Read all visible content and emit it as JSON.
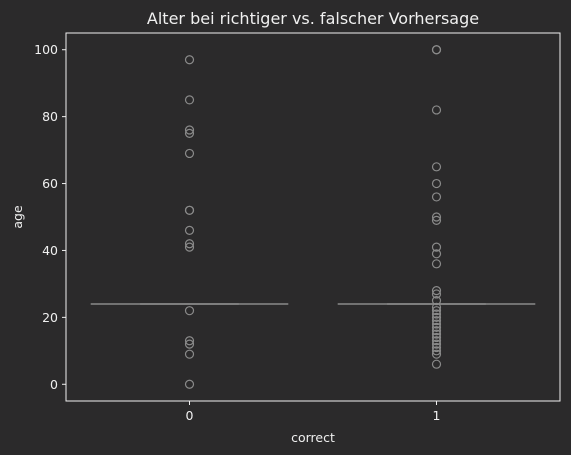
{
  "chart_data": {
    "type": "box",
    "title": "Alter bei richtiger vs. falscher Vorhersage",
    "xlabel": "correct",
    "ylabel": "age",
    "categories": [
      "0",
      "1"
    ],
    "ylim": [
      -5,
      105
    ],
    "yticks": [
      0,
      20,
      40,
      60,
      80,
      100
    ],
    "grid": false,
    "colors": {
      "background": "#2b2a2b",
      "text": "#f0f0f0",
      "box": "#8a8a8a"
    },
    "series": [
      {
        "category": "0",
        "median": 24,
        "q1": 24,
        "q3": 24,
        "whisker_low": 24,
        "whisker_high": 24,
        "outliers": [
          97,
          85,
          76,
          75,
          69,
          52,
          52,
          46,
          42,
          41,
          22,
          13,
          12,
          9,
          0
        ]
      },
      {
        "category": "1",
        "median": 24,
        "q1": 24,
        "q3": 24,
        "whisker_low": 24,
        "whisker_high": 24,
        "outliers": [
          100,
          100,
          82,
          65,
          60,
          56,
          50,
          49,
          41,
          39,
          36,
          28,
          27,
          25,
          23,
          22,
          21,
          20,
          19,
          18,
          17,
          16,
          15,
          14,
          13,
          12,
          11,
          10,
          9,
          6
        ]
      }
    ]
  }
}
